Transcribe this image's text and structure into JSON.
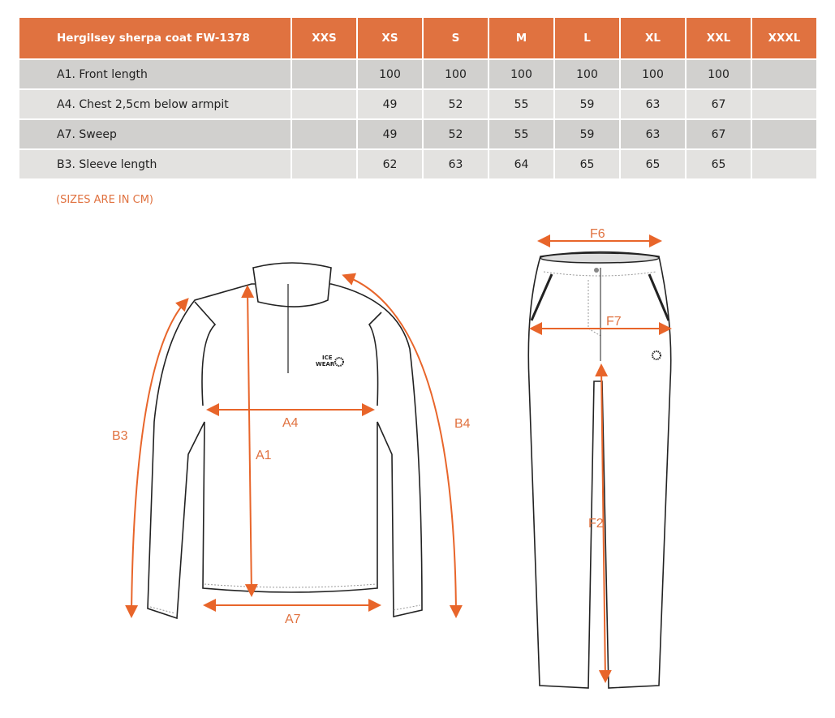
{
  "table": {
    "title": "Hergilsey sherpa coat FW-1378",
    "sizes": [
      "XXS",
      "XS",
      "S",
      "M",
      "L",
      "XL",
      "XXL",
      "XXXL"
    ],
    "rows": [
      {
        "label": "A1. Front length",
        "values": [
          "",
          "100",
          "100",
          "100",
          "100",
          "100",
          "100",
          ""
        ]
      },
      {
        "label": "A4. Chest 2,5cm below armpit",
        "values": [
          "",
          "49",
          "52",
          "55",
          "59",
          "63",
          "67",
          ""
        ]
      },
      {
        "label": "A7. Sweep",
        "values": [
          "",
          "49",
          "52",
          "55",
          "59",
          "63",
          "67",
          ""
        ]
      },
      {
        "label": "B3. Sleeve length",
        "values": [
          "",
          "62",
          "63",
          "64",
          "65",
          "65",
          "65",
          ""
        ]
      }
    ]
  },
  "note": "(SIZES ARE IN CM)",
  "diagram": {
    "jacket_labels": {
      "a1": "A1",
      "a4": "A4",
      "a7": "A7",
      "b3": "B3",
      "b4": "B4"
    },
    "pants_labels": {
      "f2": "F2",
      "f6": "F6",
      "f7": "F7"
    },
    "logo": {
      "line1": "ICE",
      "line2": "WEAR"
    }
  },
  "colors": {
    "accent": "#e07240",
    "row_dark": "#d1d0ce",
    "row_light": "#e3e2e0"
  }
}
